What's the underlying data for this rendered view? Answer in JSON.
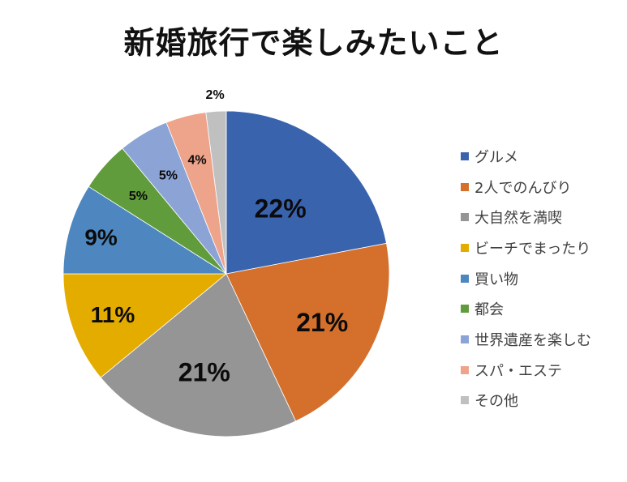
{
  "chart_data": {
    "type": "pie",
    "title": "新婚旅行で楽しみたいこと",
    "categories": [
      "グルメ",
      "2人でのんびり",
      "大自然を満喫",
      "ビーチでまったり",
      "買い物",
      "都会",
      "世界遺産を楽しむ",
      "スパ・エステ",
      "その他"
    ],
    "values": [
      22,
      21,
      21,
      11,
      9,
      5,
      5,
      4,
      2
    ],
    "labels": [
      "22%",
      "21%",
      "21%",
      "11%",
      "9%",
      "5%",
      "5%",
      "4%",
      "2%"
    ],
    "colors": [
      "#3a63ae",
      "#d4702b",
      "#959595",
      "#e5ac00",
      "#4e87c0",
      "#609c3c",
      "#8ca3d6",
      "#eea48a",
      "#c0c0c0"
    ],
    "start_angle": "12 o'clock",
    "direction": "clockwise",
    "legend_position": "right",
    "xlabel": "",
    "ylabel": ""
  },
  "title": "新婚旅行で楽しみたいこと",
  "legend": {
    "items": [
      {
        "label": "グルメ",
        "color": "#3a63ae"
      },
      {
        "label": "2人でのんびり",
        "color": "#d4702b"
      },
      {
        "label": "大自然を満喫",
        "color": "#959595"
      },
      {
        "label": "ビーチでまったり",
        "color": "#e5ac00"
      },
      {
        "label": "買い物",
        "color": "#4e87c0"
      },
      {
        "label": "都会",
        "color": "#609c3c"
      },
      {
        "label": "世界遺産を楽しむ",
        "color": "#8ca3d6"
      },
      {
        "label": "スパ・エステ",
        "color": "#eea48a"
      },
      {
        "label": "その他",
        "color": "#c0c0c0"
      }
    ]
  }
}
